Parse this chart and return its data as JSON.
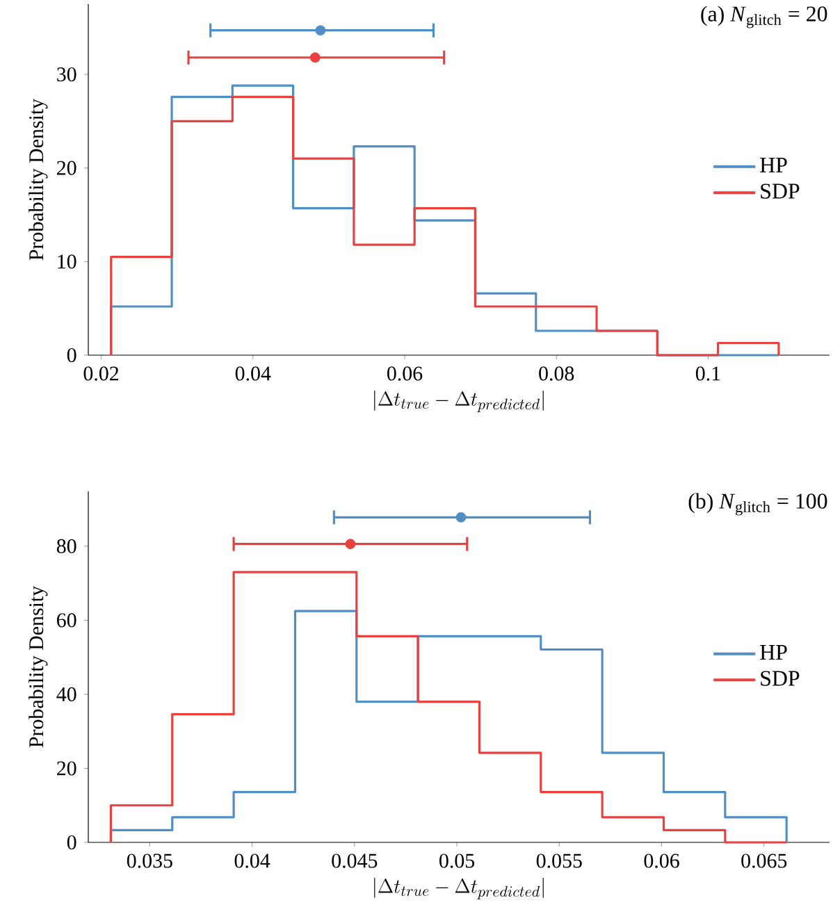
{
  "chart_data": [
    {
      "type": "histogram",
      "annotations": [
        "(a) *N*$_{glitch}$ = 20"
      ],
      "xlabel": "|\\Delta t_{true} - \\Delta t_{predicted}|",
      "ylabel": "Probability Density",
      "bins": [
        0.0213,
        0.0293,
        0.0373,
        0.0453,
        0.0533,
        0.0613,
        0.0693,
        0.0773,
        0.0853,
        0.0933,
        0.1013,
        0.1093
      ],
      "series": [
        {
          "name": "HP",
          "color": "#4f8fc6",
          "values": [
            5.2,
            27.6,
            28.8,
            15.7,
            22.3,
            14.4,
            6.6,
            2.6,
            2.6,
            0,
            0
          ]
        },
        {
          "name": "SDP",
          "color": "#e8413f",
          "values": [
            10.5,
            25,
            27.6,
            21,
            11.8,
            15.7,
            5.2,
            5.2,
            2.6,
            0,
            1.3
          ]
        },
        {
          "type": "scatter",
          "color": "#4f8fc6",
          "x": [
            0.0489
          ],
          "values": [
            34.7
          ],
          "xerrors": [
            [
              0.0344,
              0.0638
            ]
          ]
        },
        {
          "type": "scatter",
          "color": "#e8413f",
          "x": [
            0.0482
          ],
          "values": [
            31.8
          ],
          "xerrors": [
            [
              0.0315,
              0.0652
            ]
          ]
        }
      ],
      "xlim": [
        0.0183,
        0.116
      ],
      "ylim": [
        0,
        37.5
      ],
      "xticks": [
        0.02,
        0.04,
        0.06,
        0.08,
        0.1
      ],
      "yticks": [
        0,
        10,
        20,
        30
      ],
      "legend": "right"
    },
    {
      "type": "histogram",
      "annotations": [
        "(b) *N*$_{glitch}$ = 100"
      ],
      "xlabel": "|\\Delta t_{true} - \\Delta t_{predicted}|",
      "ylabel": "Probability Density",
      "bins": [
        0.0331,
        0.0361,
        0.0391,
        0.0421,
        0.0451,
        0.0481,
        0.0511,
        0.0541,
        0.0571,
        0.0601,
        0.0631,
        0.0661
      ],
      "series": [
        {
          "name": "HP",
          "color": "#4f8fc6",
          "values": [
            3.3,
            6.8,
            13.6,
            62.5,
            38,
            55.7,
            55.7,
            52.1,
            24.2,
            13.6,
            6.8
          ]
        },
        {
          "name": "SDP",
          "color": "#e8413f",
          "values": [
            10,
            34.6,
            73,
            73,
            55.7,
            38,
            24.2,
            13.6,
            6.8,
            3.3,
            0
          ]
        },
        {
          "type": "scatter",
          "color": "#4f8fc6",
          "x": [
            0.0502
          ],
          "values": [
            87.8
          ],
          "xerrors": [
            [
              0.044,
              0.0565
            ]
          ]
        },
        {
          "type": "scatter",
          "color": "#e8413f",
          "x": [
            0.0448
          ],
          "values": [
            80.6
          ],
          "xerrors": [
            [
              0.0391,
              0.0505
            ]
          ]
        }
      ],
      "xlim": [
        0.032,
        0.0682
      ],
      "ylim": [
        0,
        94.8
      ],
      "xticks": [
        0.035,
        0.04,
        0.045,
        0.05,
        0.055,
        0.06,
        0.065
      ],
      "yticks": [
        0,
        20,
        40,
        60,
        80
      ],
      "legend": "right"
    }
  ]
}
